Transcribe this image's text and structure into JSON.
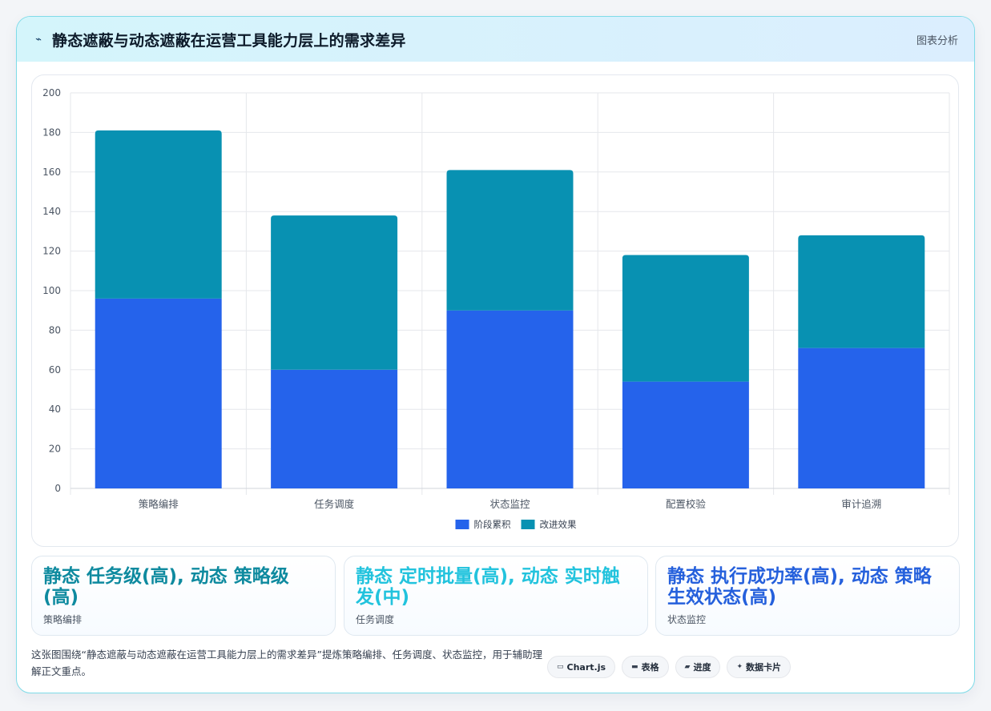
{
  "header": {
    "icon": "sparkline-icon",
    "title": "静态遮蔽与动态遮蔽在运营工具能力层上的需求差异",
    "tag": "图表分析"
  },
  "chart_data": {
    "type": "bar",
    "stacked": true,
    "categories": [
      "策略编排",
      "任务调度",
      "状态监控",
      "配置校验",
      "审计追溯"
    ],
    "series": [
      {
        "name": "阶段累积",
        "color": "#2563eb",
        "values": [
          96,
          60,
          90,
          54,
          71
        ]
      },
      {
        "name": "改进效果",
        "color": "#0891b2",
        "values": [
          85,
          78,
          71,
          64,
          57
        ]
      }
    ],
    "ylim": [
      0,
      200
    ],
    "yticks": [
      0,
      20,
      40,
      60,
      80,
      100,
      120,
      140,
      160,
      180,
      200
    ],
    "grid": true,
    "legend": "bottom"
  },
  "stats": [
    {
      "value": "静态 任务级(高), 动态 策略级(高)",
      "label": "策略编排",
      "color": "#0e8a9f"
    },
    {
      "value": "静态 定时批量(高), 动态 实时触发(中)",
      "label": "任务调度",
      "color": "#22c3dd"
    },
    {
      "value": "静态 执行成功率(高), 动态 策略生效状态(高)",
      "label": "状态监控",
      "color": "#2560dc"
    }
  ],
  "footer": {
    "text": "这张图围绕“静态遮蔽与动态遮蔽在运营工具能力层上的需求差异”提炼策略编排、任务调度、状态监控，用于辅助理解正文重点。",
    "chips": [
      {
        "icon": "▭",
        "label": "Chart.js"
      },
      {
        "icon": "▬",
        "label": "表格"
      },
      {
        "icon": "▰",
        "label": "进度"
      },
      {
        "icon": "✦",
        "label": "数据卡片"
      }
    ]
  }
}
